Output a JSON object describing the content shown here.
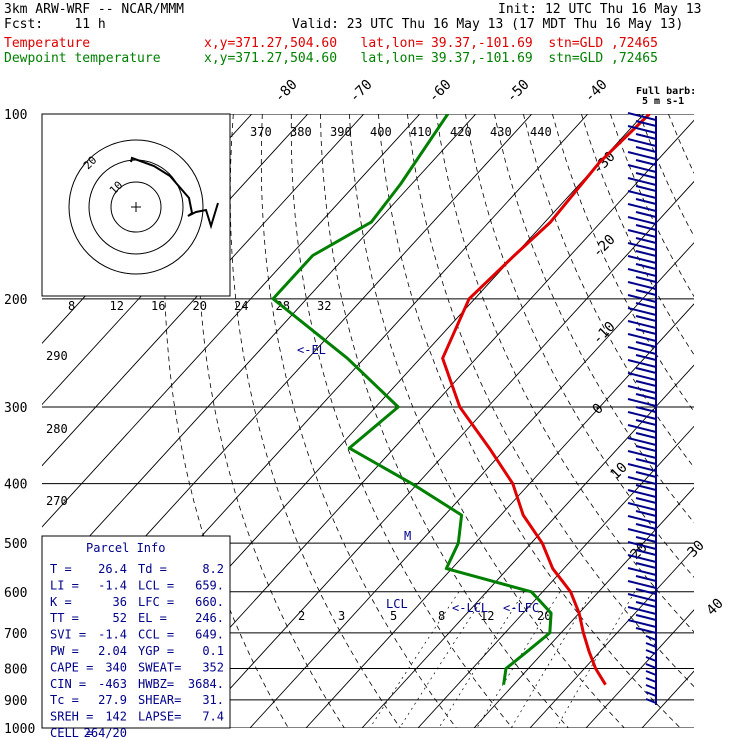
{
  "header": {
    "model": "3km ARW-WRF -- NCAR/MMM",
    "init": "Init: 12 UTC Thu 16 May 13",
    "fcst": "Fcst:    11 h",
    "valid": "Valid: 23 UTC Thu 16 May 13 (17 MDT Thu 16 May 13)",
    "temp_label": "Temperature",
    "temp_loc": "x,y=371.27,504.60   lat,lon= 39.37,-101.69  stn=GLD ,72465",
    "dew_label": "Dewpoint temperature",
    "dew_loc": "x,y=371.27,504.60   lat,lon= 39.37,-101.69  stn=GLD ,72465"
  },
  "chart_data": {
    "type": "line",
    "xlabel": "",
    "ylabel": "",
    "pressure_ticks": [
      "100",
      "200",
      "300",
      "400",
      "500",
      "600",
      "700",
      "800",
      "900",
      "1000"
    ],
    "isotherm_labels": [
      "-80",
      "-70",
      "-60",
      "-50",
      "-40",
      "-30",
      "-20",
      "-10",
      "0",
      "10",
      "20",
      "30",
      "40"
    ],
    "theta_labels": [
      "370",
      "380",
      "390",
      "400",
      "410",
      "420",
      "430",
      "440"
    ],
    "theta_side_labels": [
      "290",
      "280",
      "270"
    ],
    "mixing_ratio_labels": [
      "2",
      "3",
      "5",
      "8",
      "12",
      "20"
    ],
    "hodograph_kts_label": "kts",
    "hodograph_speed_labels": [
      "8",
      "12",
      "16",
      "20",
      "24",
      "28",
      "32"
    ],
    "hodograph_ring_labels": [
      "20",
      "10"
    ],
    "wind_legend": [
      "Full barb:",
      "5 m s-1"
    ],
    "annotations": [
      "<-EL",
      "<-LCL",
      "<-LFC",
      "LCL",
      "M"
    ],
    "series": [
      {
        "name": "Temperature",
        "color": "#e00000",
        "points": [
          [
            100,
            -59
          ],
          [
            120,
            -60
          ],
          [
            150,
            -59
          ],
          [
            170,
            -60
          ],
          [
            200,
            -61
          ],
          [
            250,
            -56
          ],
          [
            300,
            -45
          ],
          [
            350,
            -33
          ],
          [
            400,
            -23
          ],
          [
            450,
            -16
          ],
          [
            500,
            -8
          ],
          [
            550,
            -2
          ],
          [
            600,
            5
          ],
          [
            650,
            10
          ],
          [
            700,
            14
          ],
          [
            750,
            18
          ],
          [
            800,
            22
          ],
          [
            850,
            26.4
          ]
        ]
      },
      {
        "name": "Dewpoint temperature",
        "color": "#008000",
        "points": [
          [
            100,
            -95
          ],
          [
            130,
            -92
          ],
          [
            150,
            -91
          ],
          [
            170,
            -96
          ],
          [
            200,
            -96
          ],
          [
            250,
            -73
          ],
          [
            300,
            -56
          ],
          [
            350,
            -58
          ],
          [
            400,
            -41
          ],
          [
            450,
            -27
          ],
          [
            500,
            -23
          ],
          [
            550,
            -21
          ],
          [
            600,
            -2
          ],
          [
            650,
            5
          ],
          [
            700,
            8
          ],
          [
            750,
            7
          ],
          [
            800,
            6
          ],
          [
            850,
            8.2
          ]
        ]
      }
    ]
  },
  "parcel_info": {
    "title": "Parcel Info",
    "rows": [
      [
        "T  =",
        "26.4",
        "Td =",
        "8.2"
      ],
      [
        "LI =",
        "-1.4",
        "LCL =",
        "659."
      ],
      [
        "K  =",
        "36",
        "LFC =",
        "660."
      ],
      [
        "TT =",
        "52",
        "EL =",
        "246."
      ],
      [
        "SVI =",
        "-1.4",
        "CCL =",
        "649."
      ],
      [
        "PW =",
        "2.04",
        "YGP =",
        "0.1"
      ],
      [
        "CAPE =",
        "340",
        "SWEAT=",
        "352"
      ],
      [
        "CIN =",
        "-463",
        "HWBZ=",
        "3684."
      ],
      [
        "Tc =",
        "27.9",
        "SHEAR=",
        "31."
      ],
      [
        "SREH =",
        "142",
        "LAPSE=",
        "7.4"
      ],
      [
        "CELL =",
        "264/20",
        "",
        ""
      ]
    ]
  }
}
